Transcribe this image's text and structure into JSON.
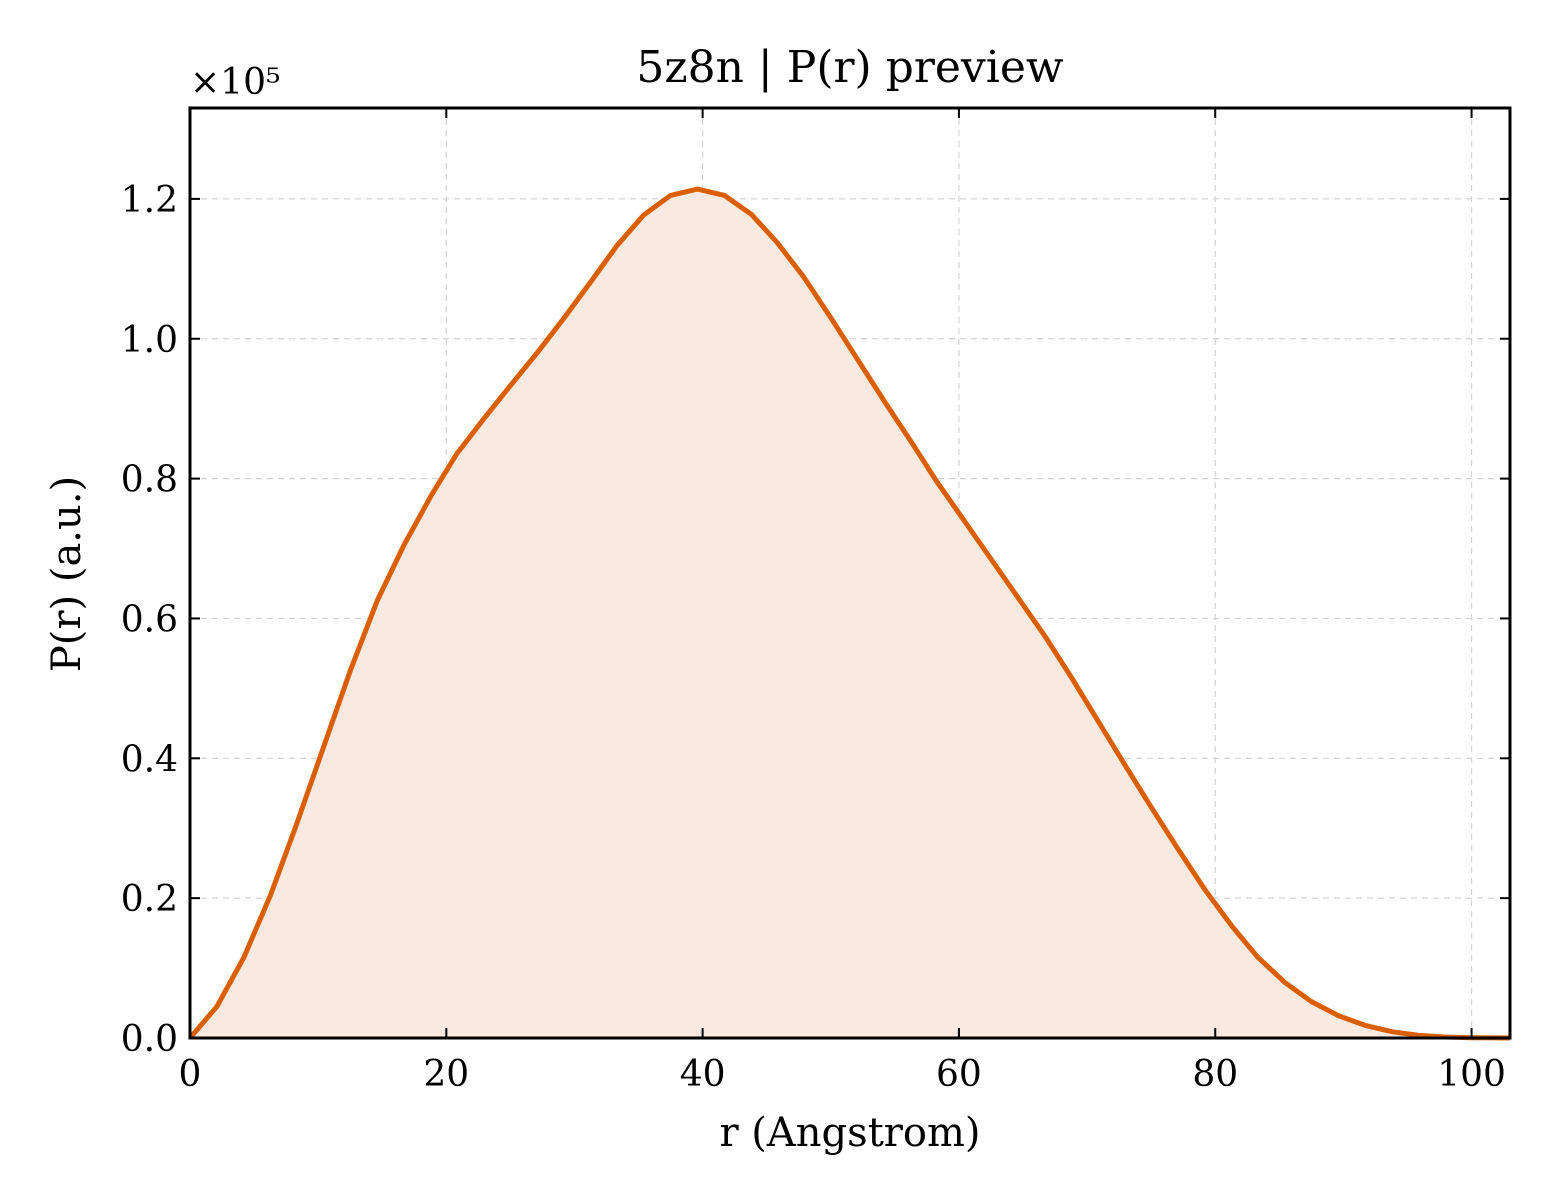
{
  "chart_data": {
    "type": "area",
    "title": "5z8n | P(r) preview",
    "xlabel": "r (Angstrom)",
    "ylabel": "P(r) (a.u.)",
    "y_multiplier_label": "×10⁵",
    "xlim": [
      0,
      103
    ],
    "ylim": [
      0,
      1.33
    ],
    "xticks": [
      0,
      20,
      40,
      60,
      80,
      100
    ],
    "xtick_labels": [
      "0",
      "20",
      "40",
      "60",
      "80",
      "100"
    ],
    "yticks": [
      0.0,
      0.2,
      0.4,
      0.6,
      0.8,
      1.0,
      1.2
    ],
    "ytick_labels": [
      "0.0",
      "0.2",
      "0.4",
      "0.6",
      "0.8",
      "1.0",
      "1.2"
    ],
    "grid": true,
    "line_color": "#d95f02",
    "fill_color": "#f8eae0",
    "series": [
      {
        "x": [
          0,
          2.1,
          4.2,
          6.3,
          8.3,
          10.4,
          12.5,
          14.6,
          16.7,
          18.8,
          20.8,
          22.9,
          25.0,
          27.1,
          29.2,
          31.3,
          33.3,
          35.4,
          37.5,
          39.6,
          41.7,
          43.8,
          45.8,
          47.9,
          50.0,
          52.1,
          54.2,
          56.3,
          58.3,
          60.4,
          62.5,
          64.6,
          66.7,
          68.8,
          70.8,
          72.9,
          75.0,
          77.1,
          79.2,
          81.3,
          83.3,
          85.4,
          87.5,
          89.6,
          91.7,
          93.8,
          95.8,
          97.9,
          100.0,
          102.1,
          103.0
        ],
        "y": [
          0.0,
          0.045,
          0.115,
          0.205,
          0.305,
          0.415,
          0.525,
          0.625,
          0.705,
          0.775,
          0.835,
          0.885,
          0.933,
          0.98,
          1.03,
          1.082,
          1.133,
          1.177,
          1.205,
          1.214,
          1.205,
          1.178,
          1.138,
          1.088,
          1.03,
          0.97,
          0.91,
          0.852,
          0.795,
          0.74,
          0.685,
          0.63,
          0.575,
          0.515,
          0.455,
          0.392,
          0.33,
          0.27,
          0.212,
          0.16,
          0.116,
          0.08,
          0.052,
          0.032,
          0.018,
          0.009,
          0.004,
          0.0015,
          0.0005,
          0.0001,
          0.0
        ]
      }
    ]
  }
}
